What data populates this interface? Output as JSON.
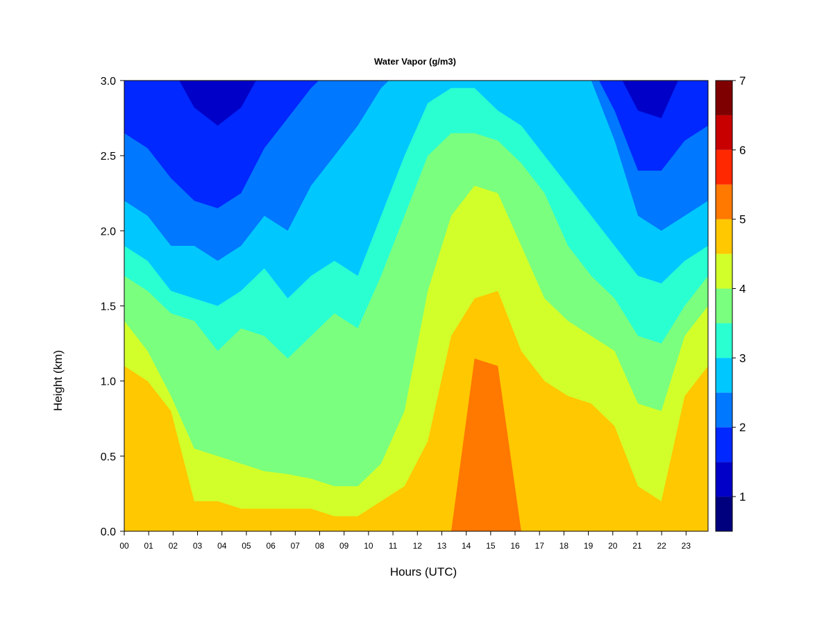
{
  "chart_data": {
    "type": "heatmap",
    "title": "Water Vapor (g/m3)",
    "xlabel": "Hours (UTC)",
    "ylabel": "Height (km)",
    "xlim": [
      0,
      23.9
    ],
    "ylim": [
      0.0,
      3.0
    ],
    "x_ticks": [
      "00",
      "01",
      "02",
      "03",
      "04",
      "05",
      "06",
      "07",
      "08",
      "09",
      "10",
      "11",
      "12",
      "13",
      "14",
      "15",
      "16",
      "17",
      "18",
      "19",
      "20",
      "21",
      "22",
      "23"
    ],
    "y_ticks": [
      "0.0",
      "0.5",
      "1.0",
      "1.5",
      "2.0",
      "2.5",
      "3.0"
    ],
    "colorbar": {
      "levels": [
        0.5,
        1,
        1.5,
        2,
        2.5,
        3,
        3.5,
        4,
        4.5,
        5,
        5.5,
        6,
        6.5,
        7
      ],
      "tick_labels": [
        "1",
        "2",
        "3",
        "4",
        "5",
        "6",
        "7"
      ],
      "colors": [
        "#00007f",
        "#0000c8",
        "#0028ff",
        "#0078ff",
        "#00c8ff",
        "#2affd2",
        "#7aff7e",
        "#d2ff2a",
        "#ffc800",
        "#ff7800",
        "#ff2800",
        "#c80000",
        "#7f0000"
      ]
    },
    "contour_bands": [
      {
        "level": 1,
        "height_km": [
          3.1,
          3.1,
          3.1,
          3.1,
          3.1,
          3.1,
          3.1,
          3.1,
          3.1,
          3.1,
          3.1,
          3.1,
          3.1,
          3.1,
          3.1,
          3.1,
          3.1,
          3.1,
          3.1,
          3.1,
          3.1,
          3.1,
          3.1,
          3.1,
          3.1,
          3.1
        ]
      },
      {
        "level": 1.5,
        "height_km": [
          3.1,
          3.1,
          3.1,
          2.82,
          2.7,
          2.82,
          3.1,
          3.1,
          3.1,
          3.1,
          3.1,
          3.1,
          3.1,
          3.1,
          3.1,
          3.1,
          3.1,
          3.1,
          3.1,
          3.1,
          3.1,
          3.1,
          2.8,
          2.75,
          3.1,
          3.1
        ]
      },
      {
        "level": 2,
        "height_km": [
          2.65,
          2.55,
          2.35,
          2.2,
          2.15,
          2.25,
          2.55,
          2.75,
          2.95,
          3.1,
          3.1,
          3.1,
          3.1,
          3.1,
          3.1,
          3.1,
          3.1,
          3.1,
          3.1,
          3.1,
          3.1,
          2.8,
          2.4,
          2.4,
          2.6,
          2.7
        ]
      },
      {
        "level": 2.5,
        "height_km": [
          2.2,
          2.1,
          1.9,
          1.9,
          1.8,
          1.9,
          2.1,
          2.0,
          2.3,
          2.5,
          2.7,
          2.95,
          3.1,
          3.1,
          3.1,
          3.1,
          3.1,
          3.1,
          3.1,
          3.1,
          3.0,
          2.6,
          2.1,
          2.0,
          2.1,
          2.2
        ]
      },
      {
        "level": 3,
        "height_km": [
          1.9,
          1.8,
          1.6,
          1.55,
          1.5,
          1.6,
          1.75,
          1.55,
          1.7,
          1.8,
          1.7,
          2.1,
          2.5,
          2.85,
          2.95,
          2.95,
          2.8,
          2.7,
          2.5,
          2.3,
          2.1,
          1.9,
          1.7,
          1.65,
          1.8,
          1.9
        ]
      },
      {
        "level": 3.5,
        "height_km": [
          1.7,
          1.6,
          1.45,
          1.4,
          1.2,
          1.35,
          1.3,
          1.15,
          1.3,
          1.45,
          1.35,
          1.7,
          2.1,
          2.5,
          2.65,
          2.65,
          2.6,
          2.45,
          2.25,
          1.9,
          1.7,
          1.55,
          1.3,
          1.25,
          1.5,
          1.7
        ]
      },
      {
        "level": 4,
        "height_km": [
          1.4,
          1.2,
          0.9,
          0.55,
          0.5,
          0.45,
          0.4,
          0.38,
          0.35,
          0.3,
          0.3,
          0.45,
          0.8,
          1.6,
          2.1,
          2.3,
          2.25,
          1.9,
          1.55,
          1.4,
          1.3,
          1.2,
          0.85,
          0.8,
          1.3,
          1.5
        ]
      },
      {
        "level": 4.5,
        "height_km": [
          1.1,
          1.0,
          0.8,
          0.2,
          0.2,
          0.15,
          0.15,
          0.15,
          0.15,
          0.1,
          0.1,
          0.2,
          0.3,
          0.6,
          1.3,
          1.55,
          1.6,
          1.2,
          1.0,
          0.9,
          0.85,
          0.7,
          0.3,
          0.2,
          0.9,
          1.1
        ]
      },
      {
        "level": 5,
        "height_km": [
          0.0,
          0.0,
          0.0,
          0.0,
          0.0,
          0.0,
          0.0,
          0.0,
          0.0,
          0.0,
          0.0,
          0.0,
          0.0,
          0.0,
          0.0,
          1.15,
          1.1,
          0.0,
          0.0,
          0.0,
          0.0,
          0.0,
          0.0,
          0.0,
          0.0,
          0.0
        ]
      }
    ],
    "colorbar_ticks_note": "1 to 7"
  }
}
